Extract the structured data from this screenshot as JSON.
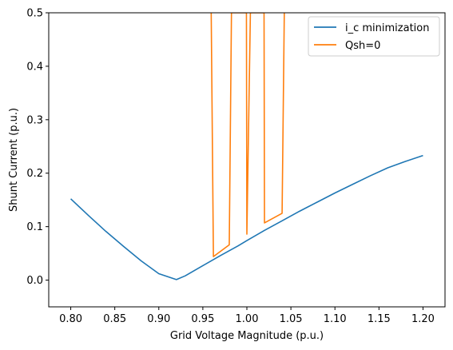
{
  "chart_data": {
    "type": "line",
    "xlabel": "Grid Voltage Magnitude (p.u.)",
    "ylabel": "Shunt Current (p.u.)",
    "xlim": [
      0.775,
      1.225
    ],
    "ylim": [
      -0.05,
      0.5
    ],
    "xticks": [
      "0.80",
      "0.85",
      "0.90",
      "0.95",
      "1.00",
      "1.05",
      "1.10",
      "1.15",
      "1.20"
    ],
    "yticks": [
      "0.0",
      "0.1",
      "0.2",
      "0.3",
      "0.4",
      "0.5"
    ],
    "grid": false,
    "legend_position": "top-right",
    "series": [
      {
        "name": "i_c minimization",
        "color": "#1f77b4",
        "x": [
          0.8,
          0.82,
          0.84,
          0.86,
          0.88,
          0.9,
          0.92,
          0.93,
          0.95,
          0.97,
          0.99,
          1.0,
          1.02,
          1.04,
          1.06,
          1.08,
          1.1,
          1.12,
          1.14,
          1.16,
          1.18,
          1.2
        ],
        "y": [
          0.152,
          0.121,
          0.091,
          0.063,
          0.036,
          0.012,
          0.001,
          0.008,
          0.027,
          0.046,
          0.064,
          0.074,
          0.093,
          0.111,
          0.129,
          0.146,
          0.163,
          0.179,
          0.195,
          0.21,
          0.222,
          0.233
        ]
      },
      {
        "name": "Qsh=0",
        "color": "#ff7f0e",
        "x": [
          0.9595,
          0.962,
          0.98,
          0.9825,
          0.9995,
          1.0,
          1.004,
          1.0195,
          1.02,
          1.04,
          1.0425
        ],
        "y": [
          0.5,
          0.044,
          0.066,
          0.5,
          0.5,
          0.086,
          0.5,
          0.5,
          0.107,
          0.125,
          0.5
        ]
      }
    ]
  }
}
